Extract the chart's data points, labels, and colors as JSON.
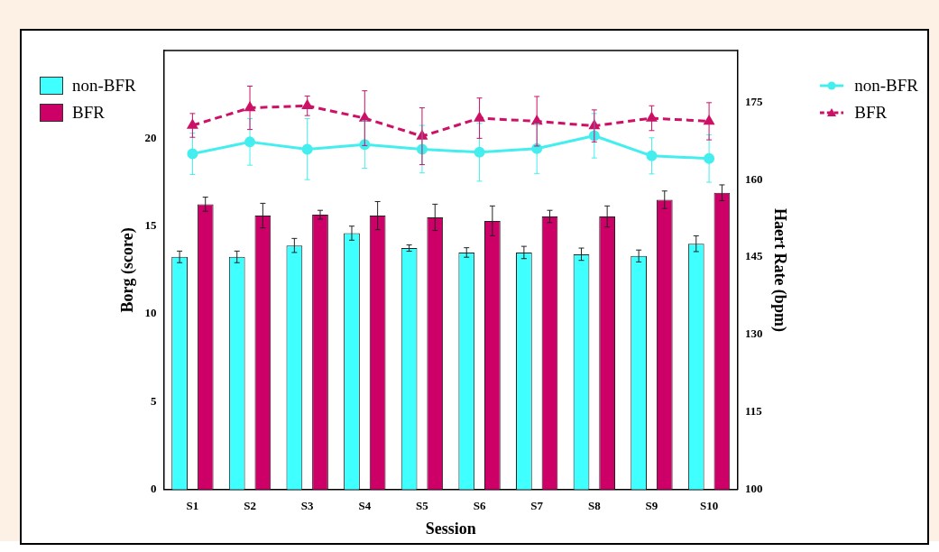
{
  "chart_data": {
    "type": "bar",
    "xlabel": "Session",
    "ylabel": "Borg (score)",
    "y2label": "Haert Rate (bpm)",
    "categories": [
      "S1",
      "S2",
      "S3",
      "S4",
      "S5",
      "S6",
      "S7",
      "S8",
      "S9",
      "S10"
    ],
    "ylim": [
      0,
      25
    ],
    "yticks": [
      0,
      5,
      10,
      15,
      20
    ],
    "y2lim": [
      100,
      185
    ],
    "y2ticks": [
      100,
      115,
      130,
      145,
      160,
      175
    ],
    "grid": false,
    "legend": "left",
    "series": [
      {
        "name": "non-BFR",
        "color": "#40ffff",
        "values": [
          13.25,
          13.25,
          13.9,
          14.6,
          13.75,
          13.5,
          13.5,
          13.4,
          13.3,
          14.0
        ],
        "errors": [
          0.33,
          0.33,
          0.4,
          0.4,
          0.18,
          0.27,
          0.35,
          0.35,
          0.34,
          0.45
        ]
      },
      {
        "name": "BFR",
        "color": "#cc0066",
        "values": [
          16.25,
          15.6,
          15.65,
          15.6,
          15.5,
          15.3,
          15.55,
          15.55,
          16.5,
          16.9
        ],
        "errors": [
          0.4,
          0.7,
          0.25,
          0.8,
          0.75,
          0.85,
          0.35,
          0.6,
          0.5,
          0.45
        ]
      },
      {
        "name": "non-BFR",
        "type": "line",
        "axis": "y2",
        "marker": "circle",
        "line_style": "solid",
        "color": "#44eeee",
        "values": [
          165.0,
          167.3,
          165.9,
          166.8,
          165.9,
          165.3,
          166.0,
          168.5,
          164.6,
          164.1
        ],
        "errors": [
          4.0,
          4.5,
          5.9,
          4.6,
          4.6,
          5.6,
          4.8,
          4.3,
          3.5,
          4.6
        ]
      },
      {
        "name": "BFR",
        "type": "line",
        "axis": "y2",
        "marker": "triangle",
        "line_style": "dashed",
        "color": "#cc1166",
        "values": [
          170.5,
          173.9,
          174.3,
          171.9,
          168.4,
          171.9,
          171.3,
          170.4,
          171.9,
          171.3
        ],
        "errors": [
          2.3,
          4.2,
          1.9,
          5.3,
          5.5,
          3.9,
          4.8,
          3.1,
          2.4,
          3.6
        ]
      }
    ]
  }
}
